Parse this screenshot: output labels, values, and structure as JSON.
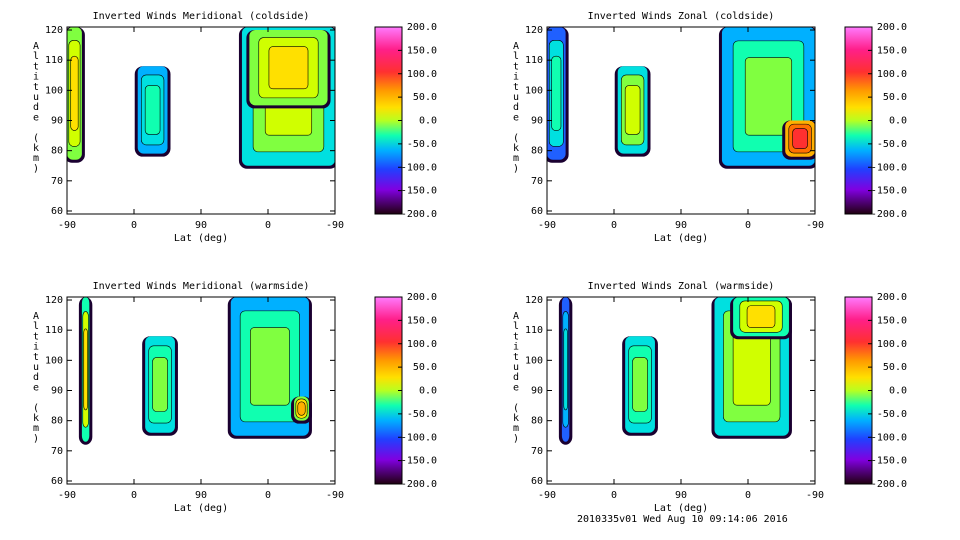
{
  "chart_data": [
    {
      "type": "heatmap",
      "title": "Inverted Winds Meridional (coldside)",
      "xlabel": "Lat (deg)",
      "ylabel": "Altitude (km)",
      "x_ticks": [
        "-90",
        "0",
        "90",
        "0",
        "-90"
      ],
      "y_ticks": [
        60,
        70,
        80,
        90,
        100,
        110,
        120
      ],
      "ylim": [
        59,
        121
      ],
      "colorbar_ticks": [
        "200.0",
        "150.0",
        "100.0",
        "50.0",
        "0.0",
        "-50.0",
        "-100.0",
        "-150.0",
        "-200.0"
      ],
      "colorbar_range": [
        -200,
        200
      ],
      "blobs": [
        {
          "x": [
            -90,
            -70
          ],
          "y": [
            77,
            121
          ],
          "v": 55
        },
        {
          "x": [
            5,
            45
          ],
          "y": [
            79,
            108
          ],
          "v": -15
        },
        {
          "x": [
            145,
            270
          ],
          "y": [
            75,
            121
          ],
          "v": 20
        },
        {
          "x": [
            155,
            260
          ],
          "y": [
            95,
            120
          ],
          "v": 60
        }
      ]
    },
    {
      "type": "heatmap",
      "title": "Inverted Winds Zonal (coldside)",
      "xlabel": "Lat (deg)",
      "ylabel": "Altitude (km)",
      "x_ticks": [
        "-90",
        "0",
        "90",
        "0",
        "-90"
      ],
      "y_ticks": [
        60,
        70,
        80,
        90,
        100,
        110,
        120
      ],
      "ylim": [
        59,
        121
      ],
      "colorbar_ticks": [
        "200.0",
        "150.0",
        "100.0",
        "50.0",
        "0.0",
        "-50.0",
        "-100.0",
        "-150.0",
        "-200.0"
      ],
      "colorbar_range": [
        -200,
        200
      ],
      "blobs": [
        {
          "x": [
            -90,
            -65
          ],
          "y": [
            77,
            121
          ],
          "v": -30
        },
        {
          "x": [
            5,
            45
          ],
          "y": [
            79,
            108
          ],
          "v": 20
        },
        {
          "x": [
            145,
            270
          ],
          "y": [
            75,
            121
          ],
          "v": -10
        },
        {
          "x": [
            230,
            270
          ],
          "y": [
            78,
            90
          ],
          "v": 130
        }
      ]
    },
    {
      "type": "heatmap",
      "title": "Inverted Winds Meridional (warmside)",
      "xlabel": "Lat (deg)",
      "ylabel": "Altitude (km)",
      "x_ticks": [
        "-90",
        "0",
        "90",
        "0",
        "-90"
      ],
      "y_ticks": [
        60,
        70,
        80,
        90,
        100,
        110,
        120
      ],
      "ylim": [
        59,
        121
      ],
      "colorbar_ticks": [
        "200.0",
        "150.0",
        "100.0",
        "50.0",
        "0.0",
        "-50.0",
        "-100.0",
        "-150.0",
        "-200.0"
      ],
      "colorbar_range": [
        -200,
        200
      ],
      "blobs": [
        {
          "x": [
            -70,
            -60
          ],
          "y": [
            73,
            121
          ],
          "v": 40
        },
        {
          "x": [
            15,
            55
          ],
          "y": [
            76,
            108
          ],
          "v": 10
        },
        {
          "x": [
            130,
            235
          ],
          "y": [
            75,
            121
          ],
          "v": -10
        },
        {
          "x": [
            215,
            235
          ],
          "y": [
            80,
            88
          ],
          "v": 70
        }
      ]
    },
    {
      "type": "heatmap",
      "title": "Inverted Winds Zonal (warmside)",
      "xlabel": "Lat (deg)",
      "ylabel": "Altitude (km)",
      "x_ticks": [
        "-90",
        "0",
        "90",
        "0",
        "-90"
      ],
      "y_ticks": [
        60,
        70,
        80,
        90,
        100,
        110,
        120
      ],
      "ylim": [
        59,
        121
      ],
      "colorbar_ticks": [
        "200.0",
        "150.0",
        "100.0",
        "50.0",
        "0.0",
        "-50.0",
        "-100.0",
        "-150.0",
        "-200.0"
      ],
      "colorbar_range": [
        -200,
        200
      ],
      "blobs": [
        {
          "x": [
            -70,
            -60
          ],
          "y": [
            73,
            121
          ],
          "v": -40
        },
        {
          "x": [
            15,
            55
          ],
          "y": [
            76,
            108
          ],
          "v": 10
        },
        {
          "x": [
            135,
            235
          ],
          "y": [
            75,
            121
          ],
          "v": 20
        },
        {
          "x": [
            160,
            235
          ],
          "y": [
            108,
            121
          ],
          "v": 45
        }
      ]
    }
  ],
  "footer": "2010335v01 Wed Aug 10 09:14:06 2016"
}
